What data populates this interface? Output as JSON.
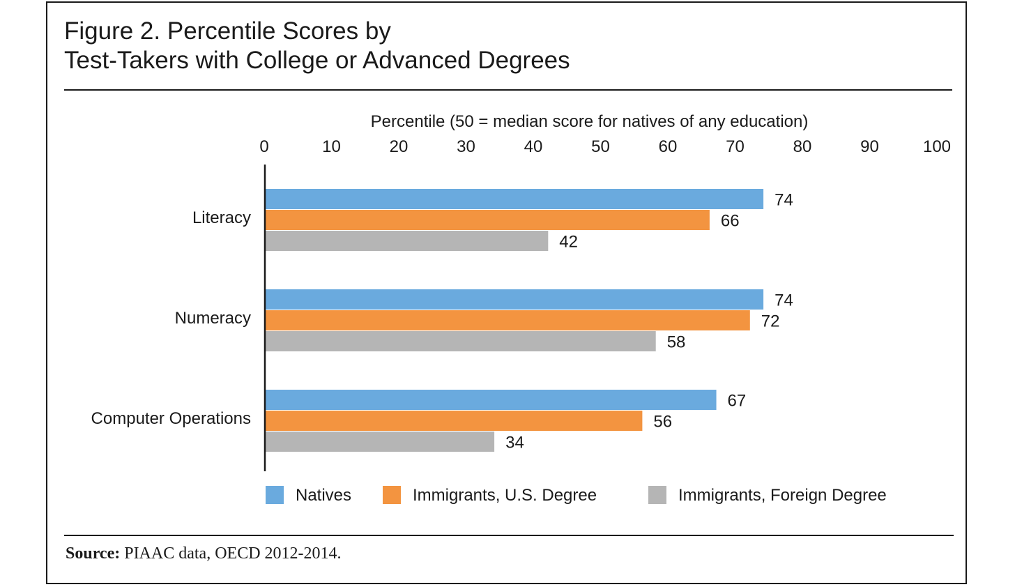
{
  "chart_data": {
    "type": "bar",
    "orientation": "horizontal",
    "title_lines": [
      "Figure 2. Percentile Scores by",
      "Test-Takers with College or Advanced Degrees"
    ],
    "xlabel": "Percentile (50 = median score for natives of any education)",
    "xlim": [
      0,
      100
    ],
    "xticks": [
      0,
      10,
      20,
      30,
      40,
      50,
      60,
      70,
      80,
      90,
      100
    ],
    "categories": [
      "Literacy",
      "Numeracy",
      "Computer Operations"
    ],
    "series": [
      {
        "name": "Natives",
        "color": "#6aaade",
        "values": [
          74,
          74,
          67
        ]
      },
      {
        "name": "Immigrants, U.S. Degree",
        "color": "#f39440",
        "values": [
          66,
          72,
          56
        ]
      },
      {
        "name": "Immigrants, Foreign Degree",
        "color": "#b5b5b5",
        "values": [
          42,
          58,
          34
        ]
      }
    ],
    "grid": false,
    "legend_position": "bottom"
  },
  "source": {
    "label": "Source:",
    "text": "PIAAC data, OECD 2012-2014."
  }
}
